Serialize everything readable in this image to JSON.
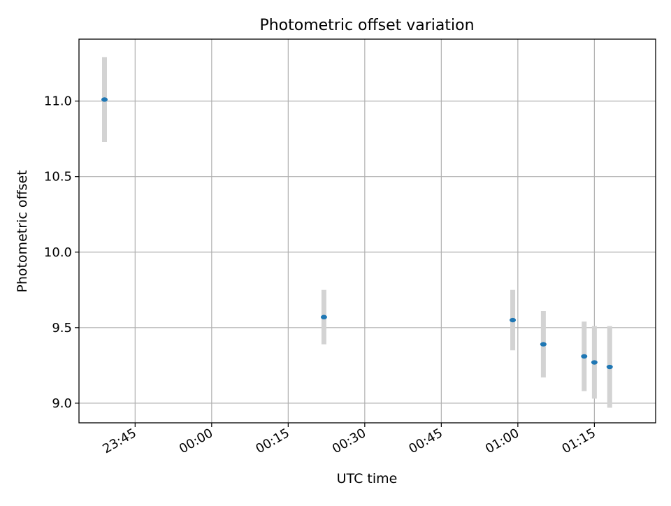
{
  "chart_data": {
    "type": "scatter",
    "title": "Photometric offset variation",
    "xlabel": "UTC time",
    "ylabel": "Photometric offset",
    "xlim": [
      "23:34",
      "01:27"
    ],
    "ylim": [
      8.87,
      11.41
    ],
    "grid": true,
    "legend": "none",
    "x_ticks": [
      "23:45",
      "00:00",
      "00:15",
      "00:30",
      "00:45",
      "01:00",
      "01:15"
    ],
    "y_ticks": [
      "9.0",
      "9.5",
      "10.0",
      "10.5",
      "11.0"
    ],
    "points": [
      {
        "x": "23:39",
        "y": 11.01,
        "yerr": 0.28
      },
      {
        "x": "00:22",
        "y": 9.57,
        "yerr": 0.18
      },
      {
        "x": "00:59",
        "y": 9.55,
        "yerr": 0.2
      },
      {
        "x": "01:05",
        "y": 9.39,
        "yerr": 0.22
      },
      {
        "x": "01:13",
        "y": 9.31,
        "yerr": 0.23
      },
      {
        "x": "01:15",
        "y": 9.27,
        "yerr": 0.24
      },
      {
        "x": "01:18",
        "y": 9.24,
        "yerr": 0.27
      }
    ],
    "colors": {
      "marker": "#1f77b4",
      "errorbar": "#d3d3d3",
      "grid": "#b0b0b0",
      "axes": "#000000"
    }
  }
}
